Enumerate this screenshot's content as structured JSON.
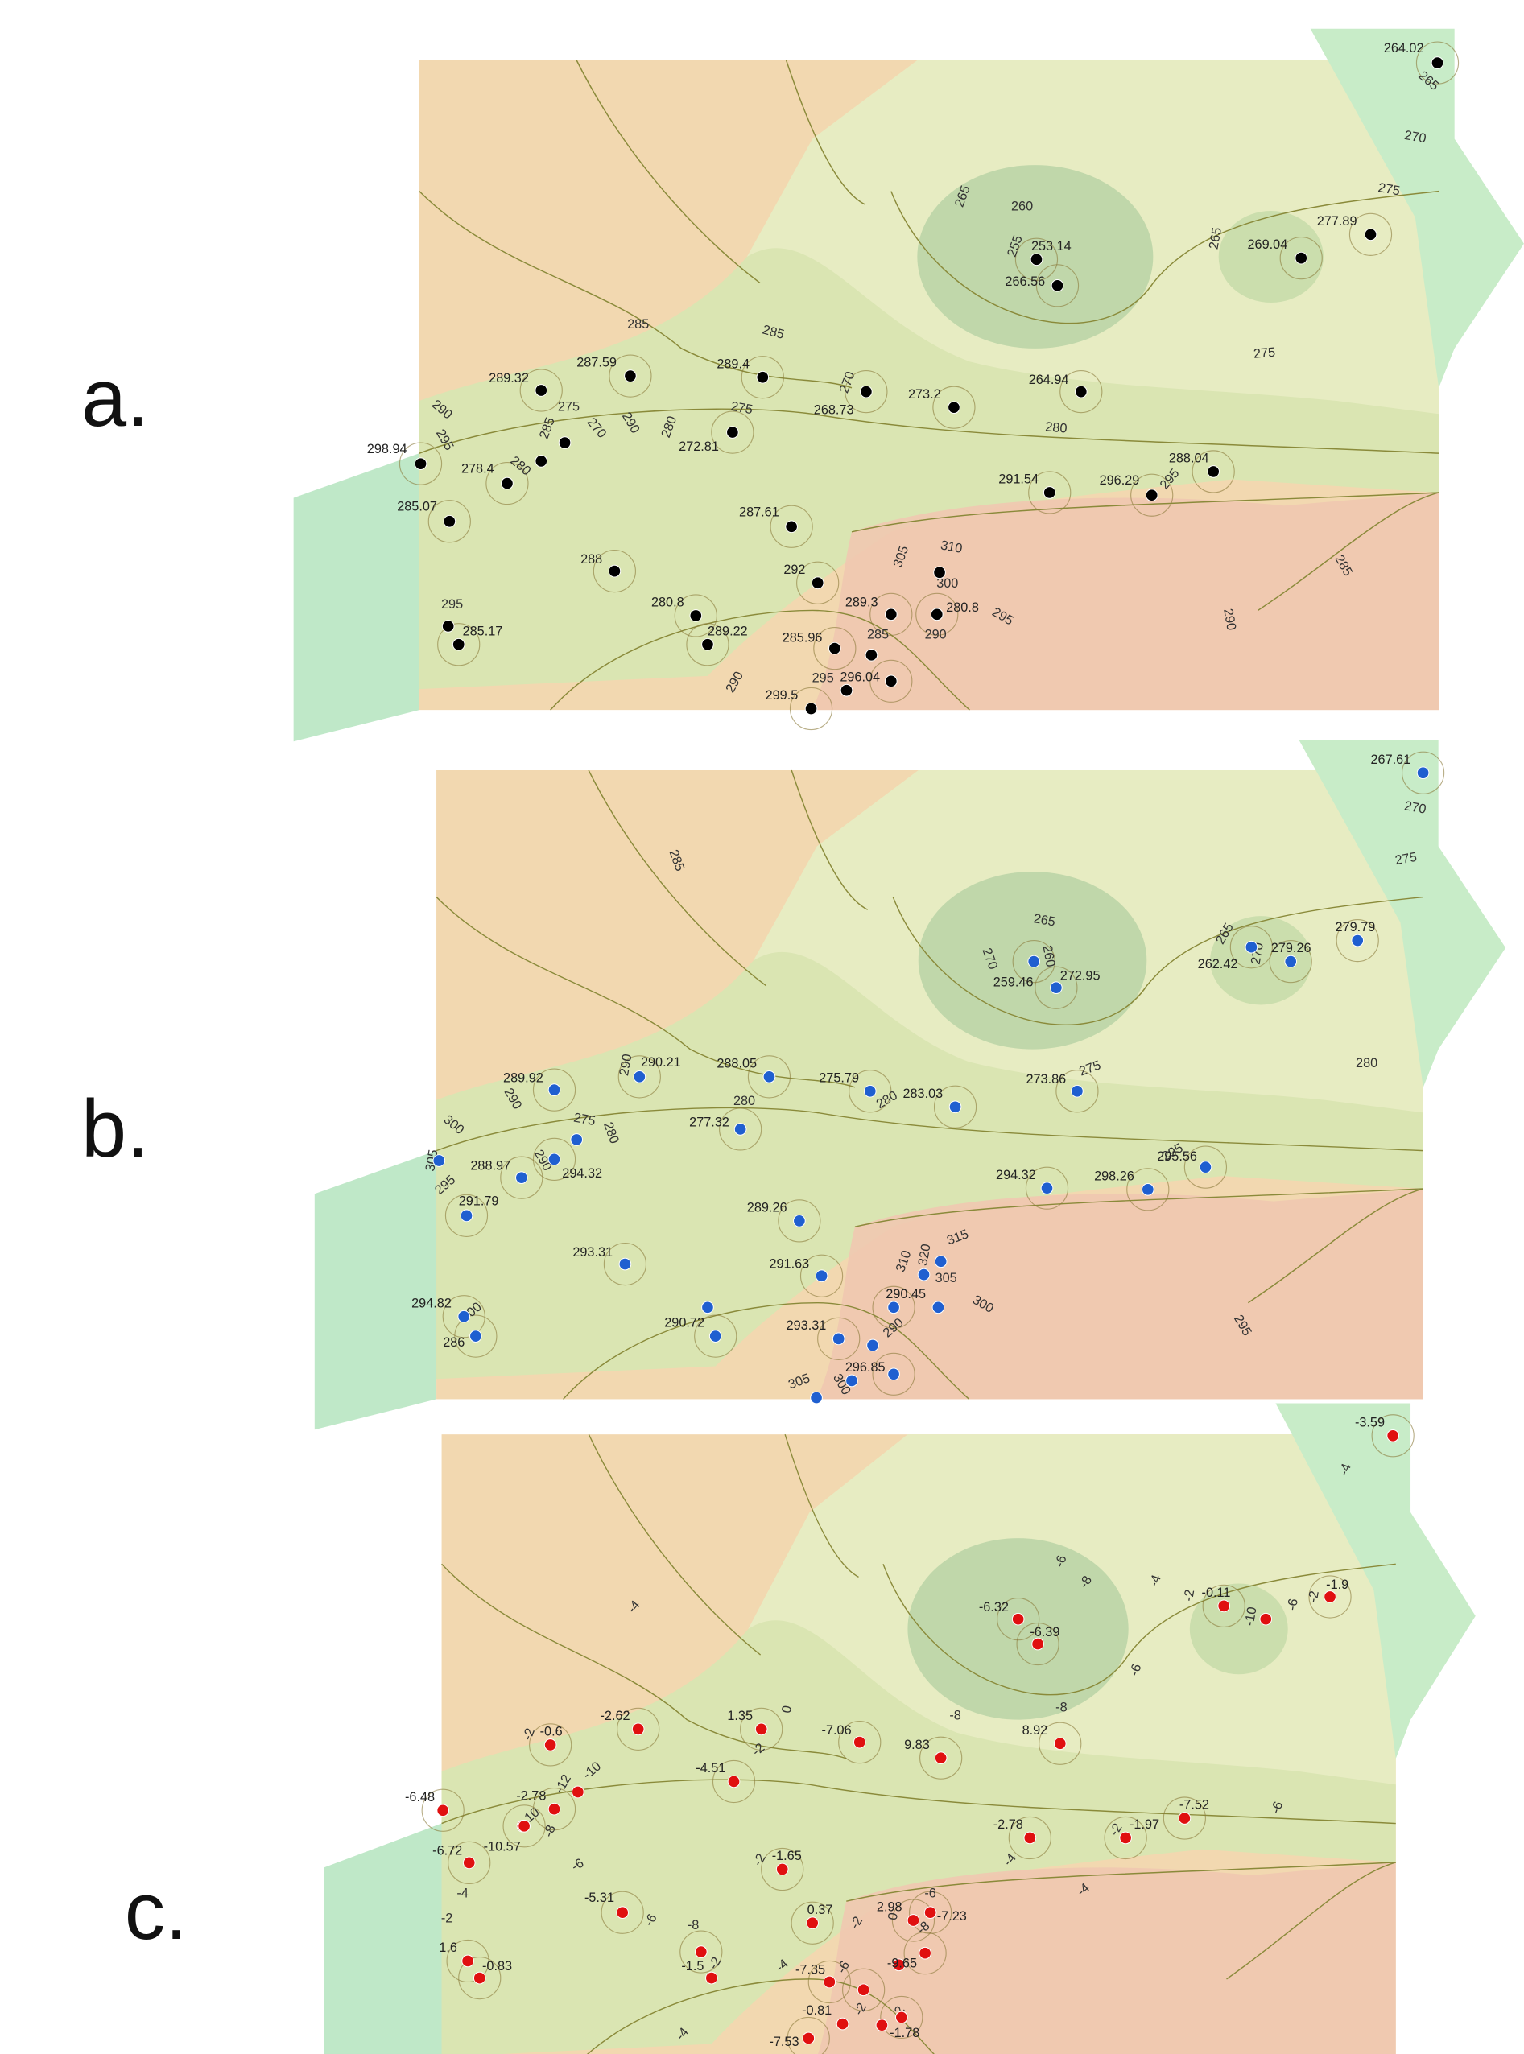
{
  "panels": [
    {
      "label": "a.",
      "stations": [
        "264.02",
        "253.14",
        "266.56",
        "269.04",
        "277.89",
        "289.32",
        "287.59",
        "289.4",
        "268.73",
        "273.2",
        "264.94",
        "272.81",
        "298.94",
        "278.4",
        "285.07",
        "287.61",
        "291.54",
        "296.29",
        "288.04",
        "288",
        "292",
        "280.8",
        "289.3",
        "280.8",
        "289.22",
        "285.96",
        "285.17",
        "296.04",
        "299.5"
      ],
      "contour_labels": [
        "265",
        "270",
        "275",
        "260",
        "255",
        "265",
        "265",
        "285",
        "285",
        "275",
        "270",
        "280",
        "290",
        "275",
        "285",
        "270",
        "290",
        "295",
        "280",
        "275",
        "280",
        "295",
        "310",
        "305",
        "300",
        "295",
        "290",
        "285",
        "295",
        "290",
        "285",
        "290",
        "295"
      ]
    },
    {
      "label": "b.",
      "stations": [
        "267.61",
        "279.79",
        "279.26",
        "262.42",
        "259.46",
        "272.95",
        "289.92",
        "290.21",
        "288.05",
        "275.79",
        "283.03",
        "273.86",
        "277.32",
        "288.97",
        "294.32",
        "291.79",
        "294.32",
        "298.26",
        "295.56",
        "289.26",
        "293.31",
        "291.63",
        "290.45",
        "294.82",
        "286",
        "290.72",
        "293.31",
        "296.85"
      ],
      "contour_labels": [
        "270",
        "275",
        "285",
        "265",
        "260",
        "270",
        "265",
        "270",
        "280",
        "275",
        "290",
        "290",
        "280",
        "280",
        "300",
        "275",
        "280",
        "305",
        "290",
        "295",
        "295",
        "315",
        "310",
        "320",
        "305",
        "300",
        "290",
        "300",
        "305",
        "300",
        "295"
      ]
    },
    {
      "label": "c.",
      "stations": [
        "-3.59",
        "-0.11",
        "-1.9",
        "-6.32",
        "-6.39",
        "-0.6",
        "-2.62",
        "1.35",
        "-7.06",
        "9.83",
        "8.92",
        "-4.51",
        "-6.48",
        "-2.78",
        "-10.57",
        "-6.72",
        "-2.78",
        "-1.97",
        "-7.52",
        "-1.65",
        "-5.31",
        "0.37",
        "2.98",
        "-7.23",
        "1.6",
        "-0.83",
        "-1.5",
        "-9.65",
        "-7.35",
        "-0.81",
        "-1.78",
        "-7.53"
      ],
      "contour_labels": [
        "-4",
        "-6",
        "-8",
        "-4",
        "-4",
        "-2",
        "-10",
        "-6",
        "-2",
        "-6",
        "-8",
        "-8",
        "0",
        "-2",
        "-2",
        "-10",
        "-12",
        "-10",
        "-8",
        "-6",
        "-6",
        "-2",
        "-4",
        "-4",
        "-2",
        "-4",
        "-2",
        "-6",
        "-8",
        "-2",
        "-2",
        "0",
        "-6",
        "-8",
        "-4",
        "-6",
        "-2",
        "2",
        "-4"
      ]
    }
  ]
}
